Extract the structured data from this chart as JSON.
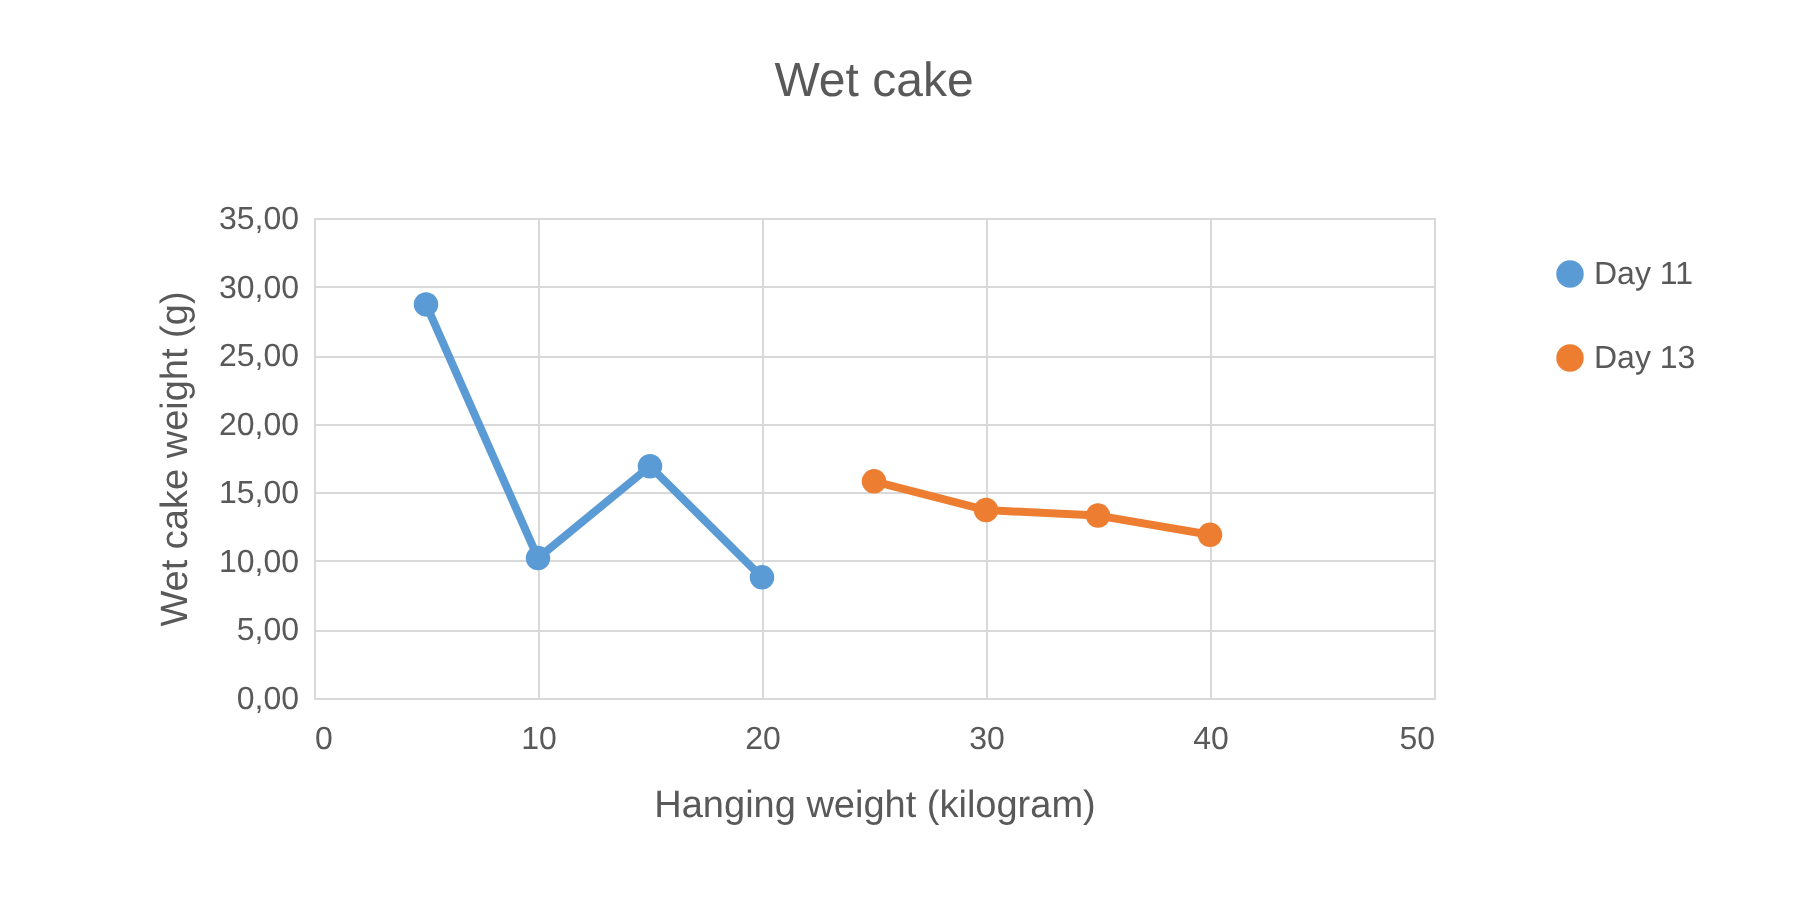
{
  "chart_data": {
    "type": "line",
    "title": "Wet cake",
    "xlabel": "Hanging weight (kilogram)",
    "ylabel": "Wet cake weight (g)",
    "series": [
      {
        "name": "Day 11",
        "color": "#5b9bd5",
        "x": [
          5,
          10,
          15,
          20
        ],
        "values": [
          28.7,
          10.2,
          16.9,
          8.8
        ]
      },
      {
        "name": "Day 13",
        "color": "#ed7d31",
        "x": [
          25,
          30,
          35,
          40
        ],
        "values": [
          15.8,
          13.7,
          13.3,
          11.9
        ]
      }
    ],
    "xlim": [
      0,
      50
    ],
    "xticks": [
      0,
      10,
      20,
      30,
      40,
      50
    ],
    "ylim": [
      0,
      35
    ],
    "yticks": [
      {
        "value": 0,
        "label": "0,00"
      },
      {
        "value": 5,
        "label": "5,00"
      },
      {
        "value": 10,
        "label": "10,00"
      },
      {
        "value": 15,
        "label": "15,00"
      },
      {
        "value": 20,
        "label": "20,00"
      },
      {
        "value": 25,
        "label": "25,00"
      },
      {
        "value": 30,
        "label": "30,00"
      },
      {
        "value": 35,
        "label": "35,00"
      }
    ],
    "grid": true,
    "legend": "right",
    "marker": "circle",
    "line_style": "solid"
  }
}
